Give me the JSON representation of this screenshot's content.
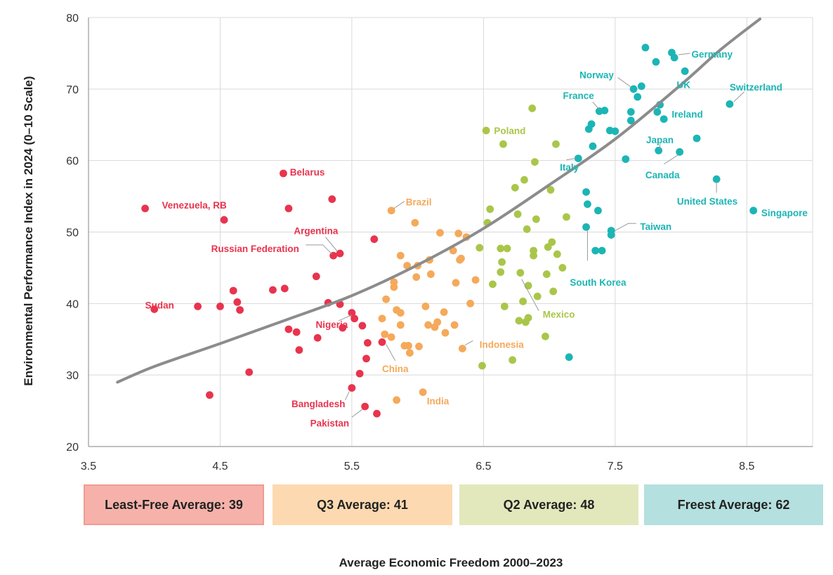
{
  "chart_data": {
    "type": "scatter",
    "xlabel": "Average Economic Freedom 2000–2023",
    "ylabel": "Environmental Performance Index in 2024 (0–10 Scale)",
    "xlim": [
      3.5,
      9.0
    ],
    "ylim": [
      20,
      80
    ],
    "xticks": [
      "3.5",
      "4.5",
      "5.5",
      "6.5",
      "7.5",
      "8.5"
    ],
    "yticks": [
      "20",
      "30",
      "40",
      "50",
      "60",
      "70",
      "80"
    ],
    "grid": true,
    "colors": {
      "least_free": "#e8344e",
      "q3": "#f5a95a",
      "q2": "#a9c64a",
      "freest": "#1cb5b5",
      "trend": "#8c8c8c"
    },
    "trendline": {
      "x": [
        3.72,
        4.0,
        4.5,
        5.0,
        5.5,
        6.0,
        6.5,
        7.0,
        7.5,
        8.0,
        8.3,
        8.6
      ],
      "y": [
        29.0,
        31.2,
        34.4,
        37.7,
        41.1,
        45.4,
        50.5,
        56.6,
        63.0,
        70.6,
        75.5,
        79.8
      ]
    },
    "groups": [
      {
        "key": "least_free",
        "color": "#e8344e",
        "points": [
          [
            3.93,
            53.3
          ],
          [
            4.0,
            39.2
          ],
          [
            4.33,
            39.6
          ],
          [
            4.42,
            27.2
          ],
          [
            4.5,
            39.6
          ],
          [
            4.53,
            51.7
          ],
          [
            4.6,
            41.8
          ],
          [
            4.63,
            40.2
          ],
          [
            4.65,
            39.1
          ],
          [
            4.72,
            30.4
          ],
          [
            4.9,
            41.9
          ],
          [
            4.98,
            58.2
          ],
          [
            4.99,
            42.1
          ],
          [
            5.02,
            53.3
          ],
          [
            5.02,
            36.4
          ],
          [
            5.08,
            36.0
          ],
          [
            5.1,
            33.5
          ],
          [
            5.23,
            43.8
          ],
          [
            5.24,
            35.2
          ],
          [
            5.32,
            40.1
          ],
          [
            5.35,
            54.6
          ],
          [
            5.36,
            46.7
          ],
          [
            5.41,
            47.0
          ],
          [
            5.41,
            39.9
          ],
          [
            5.43,
            36.6
          ],
          [
            5.5,
            38.7
          ],
          [
            5.52,
            37.9
          ],
          [
            5.5,
            28.2
          ],
          [
            5.56,
            30.2
          ],
          [
            5.58,
            36.9
          ],
          [
            5.6,
            25.6
          ],
          [
            5.61,
            32.3
          ],
          [
            5.62,
            34.5
          ],
          [
            5.67,
            49.0
          ],
          [
            5.69,
            24.6
          ],
          [
            5.73,
            34.6
          ]
        ]
      },
      {
        "key": "q3",
        "color": "#f5a95a",
        "points": [
          [
            5.73,
            37.9
          ],
          [
            5.75,
            35.7
          ],
          [
            5.76,
            40.6
          ],
          [
            5.8,
            35.3
          ],
          [
            5.8,
            53.0
          ],
          [
            5.82,
            43.0
          ],
          [
            5.82,
            42.3
          ],
          [
            5.84,
            39.1
          ],
          [
            5.84,
            26.5
          ],
          [
            5.87,
            46.7
          ],
          [
            5.87,
            38.7
          ],
          [
            5.87,
            37.0
          ],
          [
            5.9,
            34.1
          ],
          [
            5.92,
            45.3
          ],
          [
            5.93,
            34.1
          ],
          [
            5.94,
            33.1
          ],
          [
            5.98,
            51.3
          ],
          [
            5.99,
            43.7
          ],
          [
            6.0,
            45.3
          ],
          [
            6.01,
            34.0
          ],
          [
            6.04,
            27.6
          ],
          [
            6.06,
            39.6
          ],
          [
            6.08,
            37.0
          ],
          [
            6.09,
            46.1
          ],
          [
            6.1,
            44.1
          ],
          [
            6.13,
            36.7
          ],
          [
            6.15,
            37.4
          ],
          [
            6.17,
            49.9
          ],
          [
            6.2,
            38.8
          ],
          [
            6.21,
            35.9
          ],
          [
            6.27,
            47.4
          ],
          [
            6.28,
            37.0
          ],
          [
            6.29,
            42.9
          ],
          [
            6.31,
            49.8
          ],
          [
            6.32,
            46.1
          ],
          [
            6.33,
            46.3
          ],
          [
            6.34,
            33.7
          ],
          [
            6.37,
            49.3
          ],
          [
            6.4,
            40.0
          ],
          [
            6.44,
            43.3
          ]
        ]
      },
      {
        "key": "q2",
        "color": "#a9c64a",
        "points": [
          [
            6.47,
            47.8
          ],
          [
            6.49,
            31.3
          ],
          [
            6.52,
            64.2
          ],
          [
            6.53,
            51.3
          ],
          [
            6.55,
            53.2
          ],
          [
            6.57,
            42.7
          ],
          [
            6.63,
            44.4
          ],
          [
            6.63,
            47.7
          ],
          [
            6.64,
            45.8
          ],
          [
            6.65,
            62.3
          ],
          [
            6.66,
            39.6
          ],
          [
            6.68,
            47.7
          ],
          [
            6.72,
            32.1
          ],
          [
            6.74,
            56.2
          ],
          [
            6.76,
            52.5
          ],
          [
            6.77,
            37.6
          ],
          [
            6.78,
            44.3
          ],
          [
            6.8,
            40.3
          ],
          [
            6.81,
            57.3
          ],
          [
            6.82,
            37.4
          ],
          [
            6.83,
            50.4
          ],
          [
            6.84,
            38.0
          ],
          [
            6.84,
            42.5
          ],
          [
            6.87,
            67.3
          ],
          [
            6.88,
            46.7
          ],
          [
            6.88,
            47.4
          ],
          [
            6.89,
            59.8
          ],
          [
            6.9,
            51.8
          ],
          [
            6.91,
            41.0
          ],
          [
            6.97,
            35.4
          ],
          [
            6.98,
            44.1
          ],
          [
            6.99,
            47.9
          ],
          [
            7.01,
            55.9
          ],
          [
            7.02,
            48.6
          ],
          [
            7.03,
            41.7
          ],
          [
            7.05,
            62.3
          ],
          [
            7.06,
            46.9
          ],
          [
            7.1,
            45.0
          ],
          [
            7.13,
            52.1
          ]
        ]
      },
      {
        "key": "freest",
        "color": "#1cb5b5",
        "points": [
          [
            7.15,
            32.5
          ],
          [
            7.22,
            60.3
          ],
          [
            7.28,
            50.7
          ],
          [
            7.28,
            55.6
          ],
          [
            7.29,
            53.9
          ],
          [
            7.3,
            64.4
          ],
          [
            7.32,
            65.1
          ],
          [
            7.33,
            62.0
          ],
          [
            7.35,
            47.4
          ],
          [
            7.37,
            53.0
          ],
          [
            7.38,
            66.9
          ],
          [
            7.4,
            47.4
          ],
          [
            7.42,
            67.0
          ],
          [
            7.46,
            64.2
          ],
          [
            7.47,
            49.6
          ],
          [
            7.47,
            50.2
          ],
          [
            7.5,
            64.1
          ],
          [
            7.58,
            60.2
          ],
          [
            7.62,
            66.8
          ],
          [
            7.62,
            65.6
          ],
          [
            7.64,
            70.0
          ],
          [
            7.67,
            68.9
          ],
          [
            7.7,
            70.4
          ],
          [
            7.73,
            75.8
          ],
          [
            7.81,
            73.8
          ],
          [
            7.82,
            66.8
          ],
          [
            7.83,
            61.4
          ],
          [
            7.84,
            67.8
          ],
          [
            7.87,
            65.8
          ],
          [
            7.93,
            75.1
          ],
          [
            7.95,
            74.4
          ],
          [
            7.99,
            61.2
          ],
          [
            8.03,
            72.5
          ],
          [
            8.12,
            63.1
          ],
          [
            8.27,
            57.4
          ],
          [
            8.37,
            67.9
          ],
          [
            8.55,
            53.0
          ]
        ]
      }
    ],
    "annotations": [
      {
        "text": "Venezuela, RB",
        "color": "#e8344e",
        "tx": 4.55,
        "ty": 53.8,
        "anchor": "end",
        "line": null
      },
      {
        "text": "Belarus",
        "color": "#e8344e",
        "tx": 5.03,
        "ty": 58.4,
        "anchor": "start",
        "line": null
      },
      {
        "text": "Argentina",
        "color": "#e8344e",
        "tx": 5.06,
        "ty": 50.2,
        "anchor": "start",
        "line": [
          [
            5.3,
            49.3
          ],
          [
            5.39,
            47.3
          ]
        ]
      },
      {
        "text": "Russian Federation",
        "color": "#e8344e",
        "tx": 5.1,
        "ty": 47.7,
        "anchor": "end",
        "line": [
          [
            5.15,
            48.2
          ],
          [
            5.28,
            48.2
          ],
          [
            5.35,
            46.9
          ]
        ]
      },
      {
        "text": "Sudan",
        "color": "#e8344e",
        "tx": 4.15,
        "ty": 39.8,
        "anchor": "end",
        "line": null
      },
      {
        "text": "Nigeria",
        "color": "#e8344e",
        "tx": 5.47,
        "ty": 37.1,
        "anchor": "end",
        "line": [
          [
            5.4,
            37.6
          ],
          [
            5.5,
            38.4
          ]
        ]
      },
      {
        "text": "Bangladesh",
        "color": "#e8344e",
        "tx": 5.45,
        "ty": 26.0,
        "anchor": "end",
        "line": [
          [
            5.45,
            26.5
          ],
          [
            5.48,
            27.7
          ]
        ]
      },
      {
        "text": "Pakistan",
        "color": "#e8344e",
        "tx": 5.48,
        "ty": 23.3,
        "anchor": "end",
        "line": [
          [
            5.5,
            24.1
          ],
          [
            5.58,
            25.2
          ]
        ]
      },
      {
        "text": "Brazil",
        "color": "#f5a95a",
        "tx": 5.91,
        "ty": 54.2,
        "anchor": "start",
        "line": [
          [
            5.82,
            53.3
          ],
          [
            5.9,
            54.3
          ]
        ]
      },
      {
        "text": "China",
        "color": "#f5a95a",
        "tx": 5.83,
        "ty": 30.9,
        "anchor": "middle",
        "line": [
          [
            5.76,
            34.3
          ],
          [
            5.83,
            32.0
          ]
        ]
      },
      {
        "text": "India",
        "color": "#f5a95a",
        "tx": 6.07,
        "ty": 26.4,
        "anchor": "start",
        "line": null
      },
      {
        "text": "Indonesia",
        "color": "#f5a95a",
        "tx": 6.47,
        "ty": 34.3,
        "anchor": "start",
        "line": [
          [
            6.36,
            34.2
          ],
          [
            6.42,
            34.8
          ]
        ]
      },
      {
        "text": "Poland",
        "color": "#a9c64a",
        "tx": 6.58,
        "ty": 64.2,
        "anchor": "start",
        "line": null
      },
      {
        "text": "Mexico",
        "color": "#a9c64a",
        "tx": 6.95,
        "ty": 38.5,
        "anchor": "start",
        "line": [
          [
            6.79,
            43.4
          ],
          [
            6.92,
            39.0
          ]
        ]
      },
      {
        "text": "Norway",
        "color": "#1cb5b5",
        "tx": 7.49,
        "ty": 72.0,
        "anchor": "end",
        "line": [
          [
            7.52,
            71.6
          ],
          [
            7.62,
            70.3
          ]
        ]
      },
      {
        "text": "France",
        "color": "#1cb5b5",
        "tx": 7.34,
        "ty": 69.1,
        "anchor": "end",
        "line": [
          [
            7.33,
            68.2
          ],
          [
            7.38,
            67.1
          ]
        ]
      },
      {
        "text": "Germany",
        "color": "#1cb5b5",
        "tx": 8.08,
        "ty": 74.9,
        "anchor": "start",
        "line": [
          [
            7.98,
            74.8
          ],
          [
            8.07,
            75.0
          ]
        ]
      },
      {
        "text": "UK",
        "color": "#1cb5b5",
        "tx": 8.02,
        "ty": 70.6,
        "anchor": "middle",
        "line": null
      },
      {
        "text": "Switzerland",
        "color": "#1cb5b5",
        "tx": 8.57,
        "ty": 70.3,
        "anchor": "middle",
        "line": [
          [
            8.48,
            69.6
          ],
          [
            8.4,
            68.2
          ]
        ]
      },
      {
        "text": "Ireland",
        "color": "#1cb5b5",
        "tx": 7.93,
        "ty": 66.5,
        "anchor": "start",
        "line": null
      },
      {
        "text": "Japan",
        "color": "#1cb5b5",
        "tx": 7.84,
        "ty": 62.9,
        "anchor": "middle",
        "line": [
          [
            7.84,
            62.4
          ],
          [
            7.84,
            61.6
          ]
        ]
      },
      {
        "text": "Canada",
        "color": "#1cb5b5",
        "tx": 7.86,
        "ty": 58.0,
        "anchor": "middle",
        "line": [
          [
            7.87,
            59.5
          ],
          [
            7.98,
            60.8
          ]
        ]
      },
      {
        "text": "Italy",
        "color": "#1cb5b5",
        "tx": 7.08,
        "ty": 59.1,
        "anchor": "start",
        "line": [
          [
            7.13,
            60.1
          ],
          [
            7.2,
            60.3
          ]
        ]
      },
      {
        "text": "United States",
        "color": "#1cb5b5",
        "tx": 8.2,
        "ty": 54.3,
        "anchor": "middle",
        "line": [
          [
            8.27,
            55.5
          ],
          [
            8.27,
            57.0
          ]
        ]
      },
      {
        "text": "Singapore",
        "color": "#1cb5b5",
        "tx": 8.61,
        "ty": 52.7,
        "anchor": "start",
        "line": null
      },
      {
        "text": "Taiwan",
        "color": "#1cb5b5",
        "tx": 7.69,
        "ty": 50.8,
        "anchor": "start",
        "line": [
          [
            7.5,
            50.2
          ],
          [
            7.6,
            51.2
          ],
          [
            7.66,
            51.2
          ]
        ]
      },
      {
        "text": "South Korea",
        "color": "#1cb5b5",
        "tx": 7.37,
        "ty": 43.0,
        "anchor": "middle",
        "line": [
          [
            7.29,
            50.2
          ],
          [
            7.29,
            46.0
          ]
        ]
      }
    ]
  },
  "quartiles": [
    {
      "label": "Least-Free Average: 39",
      "bg": "#f6b2aa",
      "border": "#f19b90"
    },
    {
      "label": "Q3 Average: 41",
      "bg": "#fcd9b0",
      "border": "#fcd9b0"
    },
    {
      "label": "Q2 Average: 48",
      "bg": "#e3e8bc",
      "border": "#e3e8bc"
    },
    {
      "label": "Freest Average: 62",
      "bg": "#b4e0df",
      "border": "#b4e0df"
    }
  ]
}
